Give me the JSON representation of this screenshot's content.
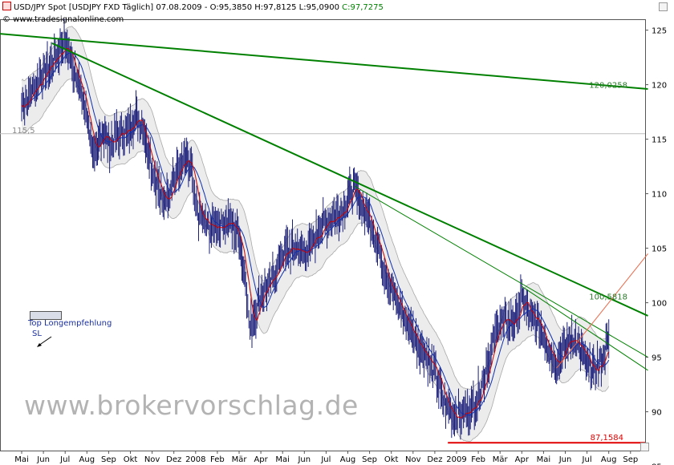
{
  "header": {
    "symbol": "USD/JPY Spot [USDJPY FXD  Täglich]",
    "date": "07.08.2009",
    "ohlc": "O:95,3850 H:97,8125 L:95,0900",
    "close": "C:97,7275",
    "copyright": "© www.tradesignalonline.com"
  },
  "watermark": "www.brokervorschlag.de",
  "legend": {
    "label": "Top Longempfehlung",
    "sl": "SL"
  },
  "colors": {
    "price": "#1b1f7a",
    "ma_fast": "#cc0000",
    "ma_slow": "#1030b0",
    "band_fill": "#ececec",
    "band_line": "#a8a8a8",
    "trend": "#008000",
    "target": "#e00000",
    "axis": "#555555"
  },
  "chart_data": {
    "type": "line",
    "y_axis": {
      "min": 84,
      "max": 126,
      "ticks": [
        85,
        90,
        95,
        100,
        105,
        110,
        115,
        120,
        125
      ],
      "position": "right"
    },
    "x_labels": [
      "Mai",
      "Jun",
      "Jul",
      "Aug",
      "Sep",
      "Okt",
      "Nov",
      "Dez",
      "2008",
      "Feb",
      "Mär",
      "Apr",
      "Mai",
      "Jun",
      "Jul",
      "Aug",
      "Sep",
      "Okt",
      "Nov",
      "Dez",
      "2009",
      "Feb",
      "Mär",
      "Apr",
      "Mai",
      "Jun",
      "Jul",
      "Aug",
      "Sep"
    ],
    "price_path": [
      [
        0,
        118.0
      ],
      [
        0.5,
        119.5
      ],
      [
        1,
        121.0
      ],
      [
        1.5,
        122.5
      ],
      [
        2,
        123.7
      ],
      [
        2.5,
        121.0
      ],
      [
        3,
        117.0
      ],
      [
        3.4,
        113.0
      ],
      [
        3.7,
        116.0
      ],
      [
        4,
        114.5
      ],
      [
        4.5,
        115.5
      ],
      [
        5,
        116.0
      ],
      [
        5.3,
        117.5
      ],
      [
        5.7,
        115.0
      ],
      [
        6,
        112.5
      ],
      [
        6.5,
        109.0
      ],
      [
        7,
        111.5
      ],
      [
        7.5,
        113.0
      ],
      [
        7.8,
        112.0
      ],
      [
        8,
        108.5
      ],
      [
        8.5,
        107.0
      ],
      [
        9,
        107.0
      ],
      [
        9.5,
        107.5
      ],
      [
        10,
        106.0
      ],
      [
        10.3,
        102.0
      ],
      [
        10.5,
        97.5
      ],
      [
        11,
        101.0
      ],
      [
        11.5,
        102.0
      ],
      [
        12,
        104.5
      ],
      [
        12.5,
        105.0
      ],
      [
        13,
        104.5
      ],
      [
        13.5,
        106.0
      ],
      [
        14,
        107.5
      ],
      [
        14.5,
        108.0
      ],
      [
        15,
        109.5
      ],
      [
        15.3,
        110.5
      ],
      [
        15.6,
        109.0
      ],
      [
        16,
        107.5
      ],
      [
        16.5,
        104.5
      ],
      [
        17,
        101.0
      ],
      [
        17.5,
        99.0
      ],
      [
        18,
        97.0
      ],
      [
        18.5,
        95.5
      ],
      [
        19,
        93.5
      ],
      [
        19.5,
        90.5
      ],
      [
        20,
        89.5
      ],
      [
        20.5,
        90.0
      ],
      [
        21,
        91.5
      ],
      [
        21.5,
        95.0
      ],
      [
        22,
        98.5
      ],
      [
        22.5,
        98.0
      ],
      [
        22.8,
        99.0
      ],
      [
        23,
        100.5
      ],
      [
        23.4,
        98.5
      ],
      [
        23.8,
        98.0
      ],
      [
        24.2,
        96.0
      ],
      [
        24.6,
        94.5
      ],
      [
        25,
        96.0
      ],
      [
        25.3,
        97.0
      ],
      [
        25.7,
        95.5
      ],
      [
        26,
        94.5
      ],
      [
        26.3,
        93.5
      ],
      [
        26.7,
        94.8
      ],
      [
        27,
        96.5
      ]
    ],
    "trendlines": [
      {
        "name": "120,0258",
        "from": [
          -1.2,
          124.7
        ],
        "to": [
          28.8,
          119.6
        ]
      },
      {
        "name": "100,5818",
        "from": [
          1.4,
          123.8
        ],
        "to": [
          28.8,
          98.8
        ]
      },
      {
        "name": "",
        "from": [
          15.3,
          110.7
        ],
        "to": [
          28.8,
          95.0
        ]
      },
      {
        "name": "",
        "from": [
          23.0,
          101.5
        ],
        "to": [
          28.8,
          93.8
        ]
      }
    ],
    "target_line": {
      "name": "87,1584",
      "value": 87.1584,
      "from_x": 19.6
    },
    "target_diagonal": {
      "from": [
        24.6,
        94.0
      ],
      "to": [
        28.8,
        104.5
      ]
    },
    "reference_line": {
      "name": "115,5",
      "value": 115.5
    },
    "value_labels": [
      "120,0258",
      "100,5818",
      "87,1584",
      "115,5"
    ]
  }
}
